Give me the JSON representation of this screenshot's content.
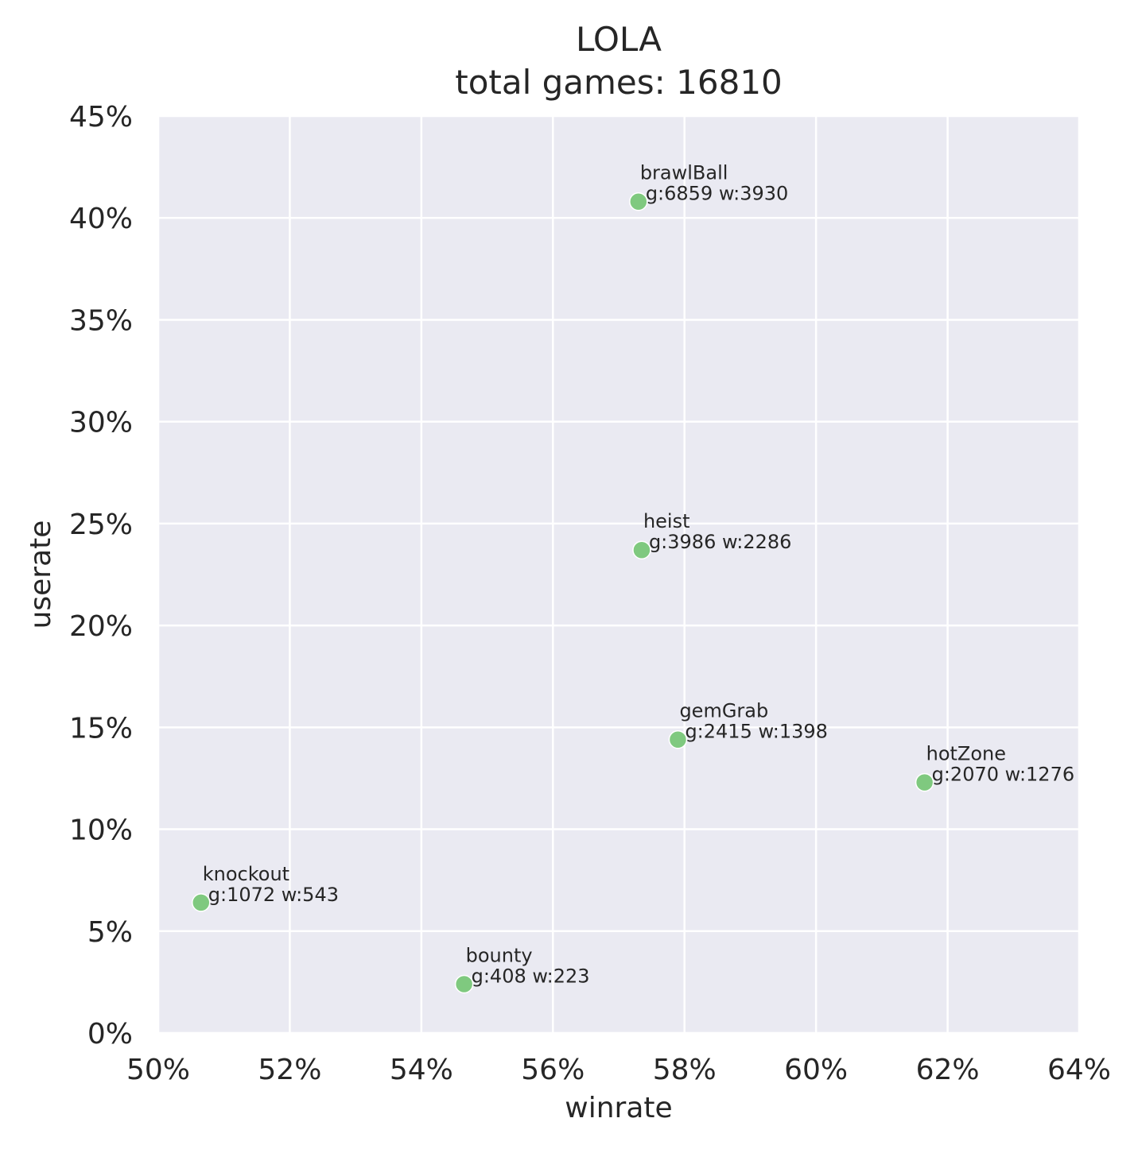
{
  "chart_data": {
    "type": "scatter",
    "title": "LOLA",
    "subtitle": "total games: 16810",
    "xlabel": "winrate",
    "ylabel": "userate",
    "xlim": [
      0.5,
      0.64
    ],
    "ylim": [
      0.0,
      0.45
    ],
    "x_ticks": [
      0.5,
      0.52,
      0.54,
      0.56,
      0.58,
      0.6,
      0.62,
      0.64
    ],
    "y_ticks": [
      0.0,
      0.05,
      0.1,
      0.15,
      0.2,
      0.25,
      0.3,
      0.35,
      0.4,
      0.45
    ],
    "x_tick_labels": [
      "50%",
      "52%",
      "54%",
      "56%",
      "58%",
      "60%",
      "62%",
      "64%"
    ],
    "y_tick_labels": [
      "0%",
      "5%",
      "10%",
      "15%",
      "20%",
      "25%",
      "30%",
      "35%",
      "40%",
      "45%"
    ],
    "grid": true,
    "background_color": "#eaeaf2",
    "marker_color": "#7fc97f",
    "points": [
      {
        "label": "brawlBall",
        "detail": "g:6859 w:3930",
        "x": 0.573,
        "y": 0.408
      },
      {
        "label": "heist",
        "detail": "g:3986 w:2286",
        "x": 0.5735,
        "y": 0.237
      },
      {
        "label": "gemGrab",
        "detail": "g:2415 w:1398",
        "x": 0.579,
        "y": 0.144
      },
      {
        "label": "hotZone",
        "detail": "g:2070 w:1276",
        "x": 0.6165,
        "y": 0.123
      },
      {
        "label": "knockout",
        "detail": "g:1072 w:543",
        "x": 0.5065,
        "y": 0.064
      },
      {
        "label": "bounty",
        "detail": "g:408 w:223",
        "x": 0.5465,
        "y": 0.024
      }
    ]
  }
}
